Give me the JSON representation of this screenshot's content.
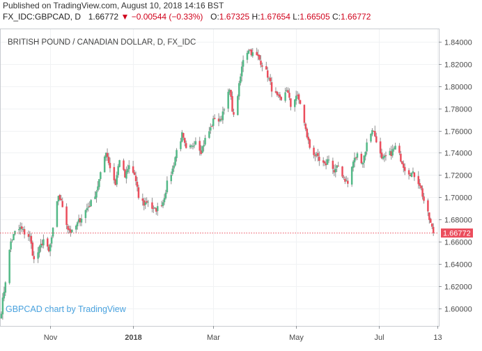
{
  "published": "Published on TradingView.com, August 10, 2018 14:16 BST",
  "quote": {
    "symbol": "FX_IDC:GBPCAD, D",
    "last": "1.66772",
    "arrow": "▼",
    "change": "−0.00544 (−0.33%)",
    "open_label": "O:",
    "open": "1.67325",
    "high_label": "H:",
    "high": "1.67654",
    "low_label": "L:",
    "low": "1.66505",
    "close_label": "C:",
    "close": "1.66772"
  },
  "colors": {
    "up": "#53b987",
    "down": "#eb4d5c",
    "wick": "#8f8f8f",
    "grid": "#f0f2f4",
    "price_line": "#eb4d5c",
    "watermark": "#4aa3df"
  },
  "chart_data": {
    "type": "candlestick",
    "title": "BRITISH POUND / CANADIAN DOLLAR, D, FX_IDC",
    "watermark": "GBPCAD chart by TradingView",
    "ylim": [
      1.584,
      1.852
    ],
    "yticks": [
      1.6,
      1.62,
      1.64,
      1.66,
      1.68,
      1.7,
      1.72,
      1.74,
      1.76,
      1.78,
      1.8,
      1.82,
      1.84
    ],
    "ytick_labels": [
      "1.60000",
      "1.62000",
      "1.64000",
      "1.66000",
      "1.68000",
      "1.70000",
      "1.72000",
      "1.74000",
      "1.76000",
      "1.78000",
      "1.80000",
      "1.82000",
      "1.84000"
    ],
    "x_range": [
      "2017-09-25",
      "2018-08-14"
    ],
    "xticks": [
      {
        "date": "2017-11-01",
        "label": "Nov"
      },
      {
        "date": "2018-01-01",
        "label": "2018"
      },
      {
        "date": "2018-03-01",
        "label": "Mar"
      },
      {
        "date": "2018-05-01",
        "label": "May"
      },
      {
        "date": "2018-07-01",
        "label": "Jul"
      },
      {
        "date": "2018-08-13",
        "label": "13"
      }
    ],
    "grid": true,
    "last_price": 1.66772,
    "last_price_label": "1.66772",
    "anchors": [
      [
        "2017-09-26",
        1.598
      ],
      [
        "2017-09-29",
        1.625
      ],
      [
        "2017-10-03",
        1.66
      ],
      [
        "2017-10-06",
        1.668
      ],
      [
        "2017-10-10",
        1.672
      ],
      [
        "2017-10-13",
        1.668
      ],
      [
        "2017-10-17",
        1.664
      ],
      [
        "2017-10-20",
        1.643
      ],
      [
        "2017-10-24",
        1.653
      ],
      [
        "2017-10-27",
        1.662
      ],
      [
        "2017-10-31",
        1.65
      ],
      [
        "2017-11-03",
        1.67
      ],
      [
        "2017-11-07",
        1.702
      ],
      [
        "2017-11-10",
        1.692
      ],
      [
        "2017-11-14",
        1.672
      ],
      [
        "2017-11-17",
        1.668
      ],
      [
        "2017-11-21",
        1.676
      ],
      [
        "2017-11-24",
        1.682
      ],
      [
        "2017-11-28",
        1.69
      ],
      [
        "2017-12-01",
        1.695
      ],
      [
        "2017-12-05",
        1.706
      ],
      [
        "2017-12-08",
        1.72
      ],
      [
        "2017-12-12",
        1.742
      ],
      [
        "2017-12-15",
        1.727
      ],
      [
        "2017-12-19",
        1.712
      ],
      [
        "2017-12-22",
        1.735
      ],
      [
        "2017-12-26",
        1.718
      ],
      [
        "2017-12-29",
        1.728
      ],
      [
        "2018-01-02",
        1.72
      ],
      [
        "2018-01-05",
        1.7
      ],
      [
        "2018-01-09",
        1.694
      ],
      [
        "2018-01-12",
        1.697
      ],
      [
        "2018-01-16",
        1.688
      ],
      [
        "2018-01-19",
        1.69
      ],
      [
        "2018-01-23",
        1.696
      ],
      [
        "2018-01-26",
        1.712
      ],
      [
        "2018-01-30",
        1.725
      ],
      [
        "2018-02-02",
        1.742
      ],
      [
        "2018-02-06",
        1.756
      ],
      [
        "2018-02-09",
        1.742
      ],
      [
        "2018-02-13",
        1.745
      ],
      [
        "2018-02-16",
        1.752
      ],
      [
        "2018-02-20",
        1.742
      ],
      [
        "2018-02-23",
        1.752
      ],
      [
        "2018-02-27",
        1.762
      ],
      [
        "2018-03-02",
        1.772
      ],
      [
        "2018-03-06",
        1.768
      ],
      [
        "2018-03-09",
        1.782
      ],
      [
        "2018-03-13",
        1.796
      ],
      [
        "2018-03-16",
        1.772
      ],
      [
        "2018-03-20",
        1.8
      ],
      [
        "2018-03-23",
        1.825
      ],
      [
        "2018-03-27",
        1.834
      ],
      [
        "2018-03-30",
        1.829
      ],
      [
        "2018-04-03",
        1.826
      ],
      [
        "2018-04-06",
        1.82
      ],
      [
        "2018-04-10",
        1.81
      ],
      [
        "2018-04-13",
        1.798
      ],
      [
        "2018-04-17",
        1.79
      ],
      [
        "2018-04-20",
        1.786
      ],
      [
        "2018-04-24",
        1.798
      ],
      [
        "2018-04-27",
        1.782
      ],
      [
        "2018-05-01",
        1.792
      ],
      [
        "2018-05-04",
        1.785
      ],
      [
        "2018-05-08",
        1.76
      ],
      [
        "2018-05-11",
        1.745
      ],
      [
        "2018-05-15",
        1.738
      ],
      [
        "2018-05-18",
        1.732
      ],
      [
        "2018-05-22",
        1.728
      ],
      [
        "2018-05-25",
        1.736
      ],
      [
        "2018-05-29",
        1.722
      ],
      [
        "2018-06-01",
        1.728
      ],
      [
        "2018-06-05",
        1.718
      ],
      [
        "2018-06-08",
        1.712
      ],
      [
        "2018-06-12",
        1.732
      ],
      [
        "2018-06-15",
        1.738
      ],
      [
        "2018-06-19",
        1.732
      ],
      [
        "2018-06-22",
        1.748
      ],
      [
        "2018-06-26",
        1.762
      ],
      [
        "2018-06-29",
        1.752
      ],
      [
        "2018-07-03",
        1.733
      ],
      [
        "2018-07-06",
        1.736
      ],
      [
        "2018-07-10",
        1.74
      ],
      [
        "2018-07-13",
        1.745
      ],
      [
        "2018-07-17",
        1.735
      ],
      [
        "2018-07-20",
        1.726
      ],
      [
        "2018-07-24",
        1.722
      ],
      [
        "2018-07-27",
        1.72
      ],
      [
        "2018-07-31",
        1.712
      ],
      [
        "2018-08-03",
        1.697
      ],
      [
        "2018-08-07",
        1.68
      ],
      [
        "2018-08-10",
        1.66772
      ]
    ]
  }
}
